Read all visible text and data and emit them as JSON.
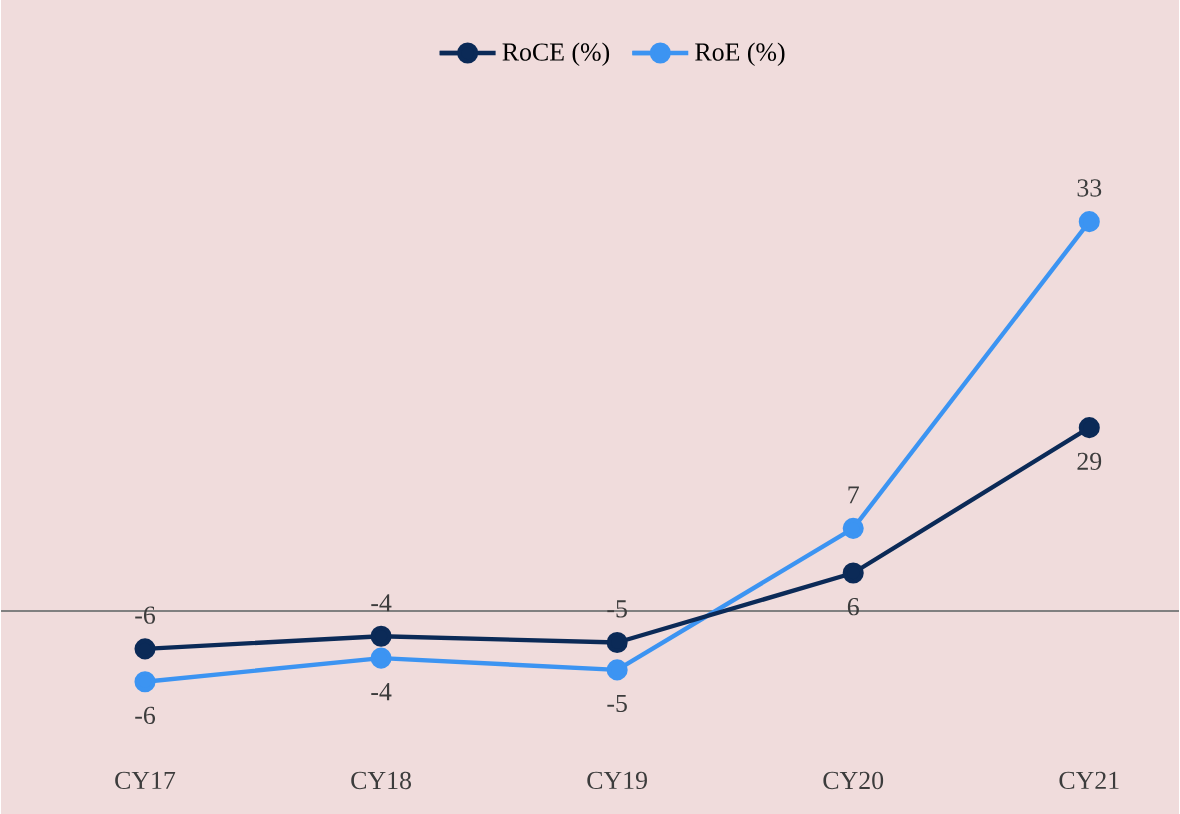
{
  "chart_data": {
    "type": "line",
    "categories": [
      "CY17",
      "CY18",
      "CY19",
      "CY20",
      "CY21"
    ],
    "series": [
      {
        "name": "RoCE (%)",
        "color": "#0b2a57",
        "values": [
          -6,
          -4,
          -5,
          6,
          29
        ],
        "axis": "y2"
      },
      {
        "name": "RoE (%)",
        "color": "#3c94f2",
        "values": [
          -6,
          -4,
          -5,
          7,
          33
        ]
      }
    ],
    "ref_lines": [
      {
        "axis": "y",
        "value": 0,
        "color": "#808080"
      }
    ],
    "data_labels": true,
    "legend": "top",
    "marker": "circle",
    "line_style": "solid",
    "tick_labels": "x"
  }
}
